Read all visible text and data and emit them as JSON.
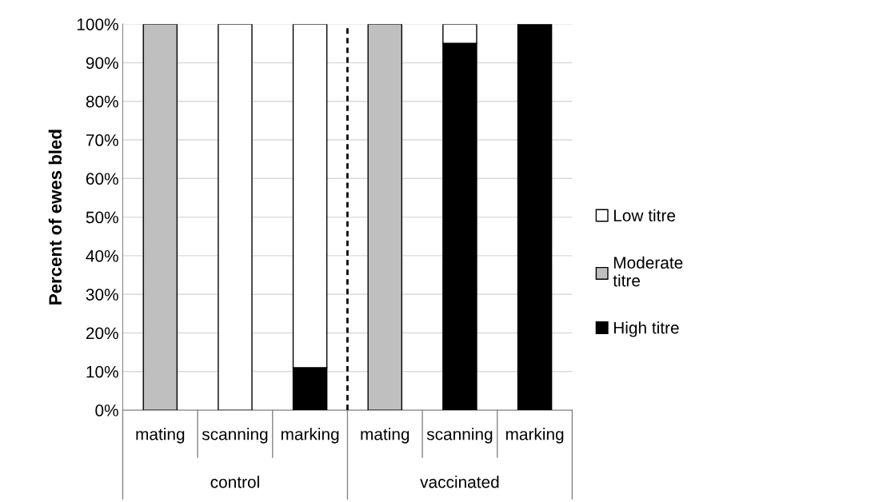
{
  "chart_data": {
    "type": "bar",
    "stacked": true,
    "ylabel": "Percent of ewes bled",
    "categories": [
      "mating",
      "scanning",
      "marking",
      "mating",
      "scanning",
      "marking"
    ],
    "series": [
      {
        "name": "High titre",
        "color": "#000000",
        "values": [
          null,
          null,
          11,
          null,
          95,
          100
        ]
      },
      {
        "name": "Moderate\ntitre",
        "color": "#bfbfbf",
        "values": [
          100,
          null,
          null,
          100,
          null,
          null
        ]
      },
      {
        "name": "Low titre",
        "color": "#ffffff",
        "values": [
          null,
          100,
          89,
          null,
          5,
          null
        ]
      }
    ],
    "ylim": [
      0,
      100
    ],
    "yticks": [
      {
        "value": 0,
        "label": "0%"
      },
      {
        "value": 10,
        "label": "10%"
      },
      {
        "value": 20,
        "label": "20%"
      },
      {
        "value": 30,
        "label": "30%"
      },
      {
        "value": 40,
        "label": "40%"
      },
      {
        "value": 50,
        "label": "50%"
      },
      {
        "value": 60,
        "label": "60%"
      },
      {
        "value": 70,
        "label": "70%"
      },
      {
        "value": 80,
        "label": "80%"
      },
      {
        "value": 90,
        "label": "90%"
      },
      {
        "value": 100,
        "label": "100%"
      }
    ],
    "annotations": [
      "control",
      "vaccinated"
    ],
    "grid": "y",
    "legend": "right"
  }
}
